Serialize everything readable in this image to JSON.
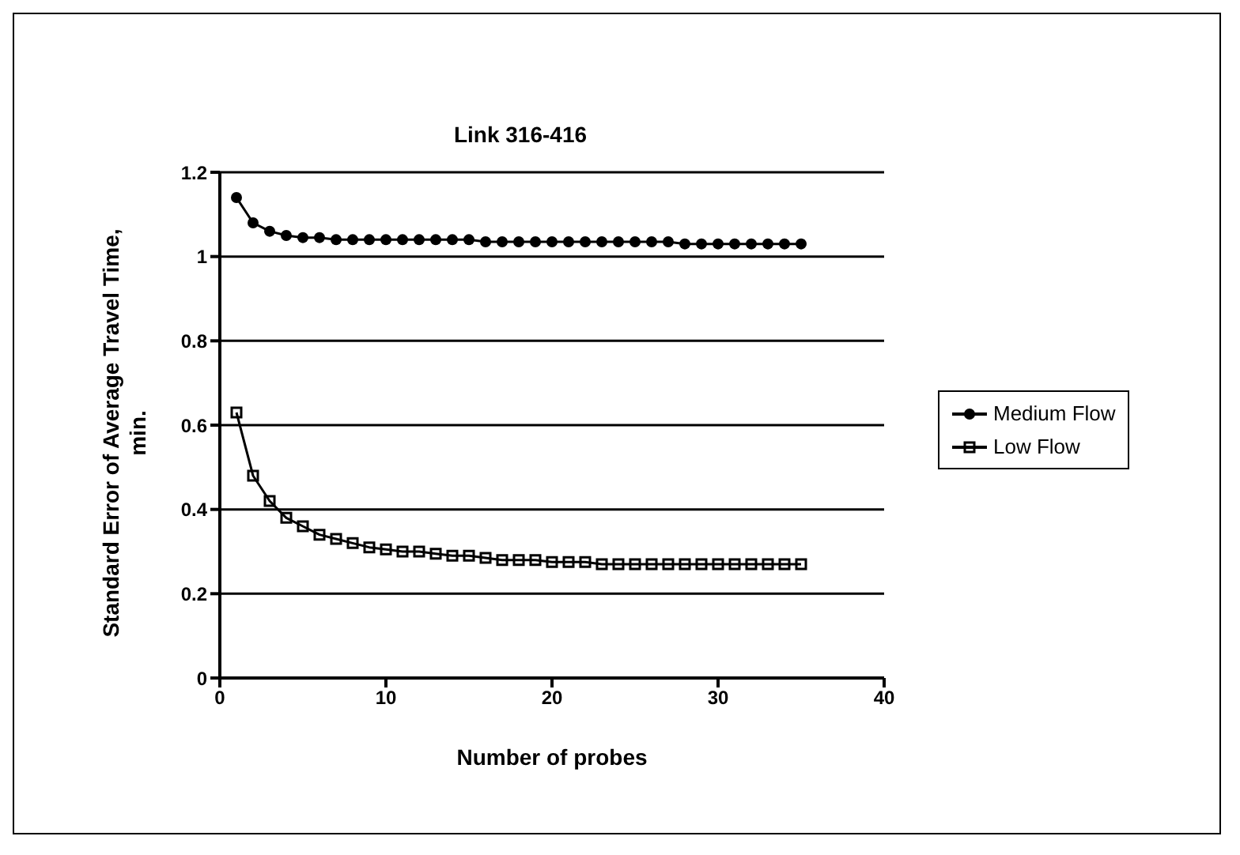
{
  "chart_data": {
    "type": "line",
    "title": "Link 316-416",
    "xlabel": "Number of probes",
    "ylabel": "Standard Error of Average Travel Time, min.",
    "x": [
      1,
      2,
      3,
      4,
      5,
      6,
      7,
      8,
      9,
      10,
      11,
      12,
      13,
      14,
      15,
      16,
      17,
      18,
      19,
      20,
      21,
      22,
      23,
      24,
      25,
      26,
      27,
      28,
      29,
      30,
      31,
      32,
      33,
      34,
      35
    ],
    "series": [
      {
        "name": "Medium Flow",
        "color": "#000000",
        "marker": "circle",
        "values": [
          1.14,
          1.08,
          1.06,
          1.05,
          1.045,
          1.045,
          1.04,
          1.04,
          1.04,
          1.04,
          1.04,
          1.04,
          1.04,
          1.04,
          1.04,
          1.035,
          1.035,
          1.035,
          1.035,
          1.035,
          1.035,
          1.035,
          1.035,
          1.035,
          1.035,
          1.035,
          1.035,
          1.03,
          1.03,
          1.03,
          1.03,
          1.03,
          1.03,
          1.03,
          1.03
        ]
      },
      {
        "name": "Low Flow",
        "color": "#000000",
        "marker": "square",
        "values": [
          0.63,
          0.48,
          0.42,
          0.38,
          0.36,
          0.34,
          0.33,
          0.32,
          0.31,
          0.305,
          0.3,
          0.3,
          0.295,
          0.29,
          0.29,
          0.285,
          0.28,
          0.28,
          0.28,
          0.275,
          0.275,
          0.275,
          0.27,
          0.27,
          0.27,
          0.27,
          0.27,
          0.27,
          0.27,
          0.27,
          0.27,
          0.27,
          0.27,
          0.27,
          0.27
        ]
      }
    ],
    "xlim": [
      0,
      40
    ],
    "xticks": [
      0,
      10,
      20,
      30,
      40
    ],
    "ylim": [
      0,
      1.2
    ],
    "yticks": [
      0,
      0.2,
      0.4,
      0.6,
      0.8,
      1,
      1.2
    ],
    "grid": "y",
    "legend": "right",
    "line_style": "solid"
  }
}
